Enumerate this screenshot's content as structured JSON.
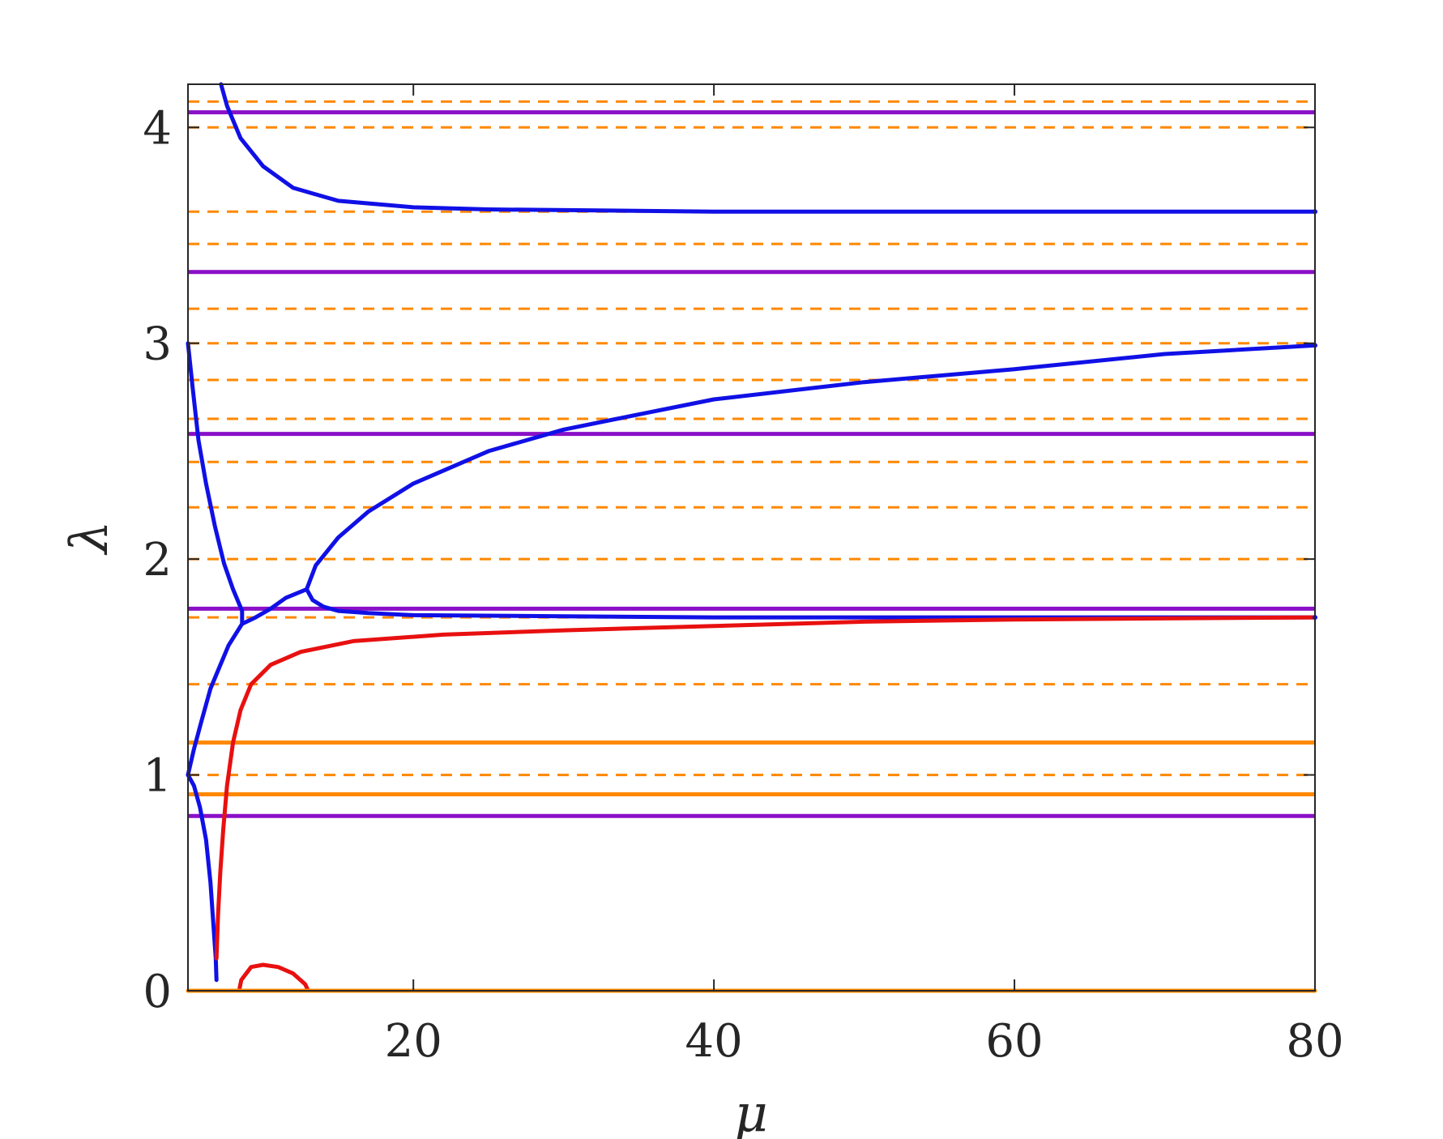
{
  "chart_data": {
    "type": "line",
    "title": "",
    "xlabel": "μ",
    "ylabel": "λ",
    "xlim": [
      5,
      80
    ],
    "ylim": [
      0,
      4.2
    ],
    "x_ticks": [
      20,
      40,
      60,
      80
    ],
    "y_ticks": [
      0,
      1,
      2,
      3,
      4
    ],
    "x_tick_labels": [
      "20",
      "40",
      "60",
      "80"
    ],
    "y_tick_labels": [
      "0",
      "1",
      "2",
      "3",
      "4"
    ],
    "grid": false,
    "legend": "none",
    "colors": {
      "blue": "#1010e6",
      "red": "#e81010",
      "purple": "#8a10c8",
      "orange": "#ff8800",
      "axis": "#262626"
    },
    "hlines": {
      "purple_solid": [
        0.81,
        1.77,
        2.58,
        3.33,
        4.07
      ],
      "orange_solid": [
        0,
        0.91,
        1.15
      ],
      "orange_dashed": [
        1.0,
        1.42,
        1.73,
        2.0,
        2.24,
        2.45,
        2.65,
        2.83,
        3.0,
        3.16,
        3.46,
        3.61,
        4.0,
        4.12
      ]
    },
    "series": [
      {
        "color": "blue",
        "points": [
          [
            5.0,
            3.0
          ],
          [
            5.3,
            2.8
          ],
          [
            5.7,
            2.55
          ],
          [
            6.2,
            2.35
          ],
          [
            6.8,
            2.15
          ],
          [
            7.4,
            1.98
          ],
          [
            8.0,
            1.86
          ],
          [
            8.6,
            1.76
          ],
          [
            8.6,
            1.7
          ]
        ]
      },
      {
        "color": "blue",
        "points": [
          [
            5.0,
            1.0
          ],
          [
            5.4,
            1.12
          ],
          [
            5.9,
            1.25
          ],
          [
            6.5,
            1.4
          ],
          [
            7.1,
            1.5
          ],
          [
            7.7,
            1.6
          ],
          [
            8.6,
            1.7
          ],
          [
            9.5,
            1.73
          ],
          [
            10.5,
            1.77
          ],
          [
            11.5,
            1.82
          ],
          [
            12.9,
            1.86
          ]
        ]
      },
      {
        "color": "blue",
        "points": [
          [
            12.9,
            1.86
          ],
          [
            13.5,
            1.97
          ],
          [
            15.0,
            2.1
          ],
          [
            17.0,
            2.22
          ],
          [
            20.0,
            2.35
          ],
          [
            25.0,
            2.5
          ],
          [
            30.0,
            2.6
          ],
          [
            35.0,
            2.67
          ],
          [
            40.0,
            2.74
          ],
          [
            50.0,
            2.82
          ],
          [
            60.0,
            2.88
          ],
          [
            70.0,
            2.95
          ],
          [
            80.0,
            2.99
          ]
        ]
      },
      {
        "color": "blue",
        "points": [
          [
            12.9,
            1.86
          ],
          [
            13.3,
            1.81
          ],
          [
            14.0,
            1.78
          ],
          [
            15.0,
            1.76
          ],
          [
            17.0,
            1.75
          ],
          [
            20.0,
            1.74
          ],
          [
            30.0,
            1.735
          ],
          [
            40.0,
            1.73
          ],
          [
            60.0,
            1.73
          ],
          [
            80.0,
            1.73
          ]
        ]
      },
      {
        "color": "blue",
        "points": [
          [
            5.0,
            1.0
          ],
          [
            5.4,
            0.95
          ],
          [
            5.8,
            0.85
          ],
          [
            6.2,
            0.7
          ],
          [
            6.5,
            0.5
          ],
          [
            6.7,
            0.3
          ],
          [
            6.85,
            0.15
          ],
          [
            6.9,
            0.05
          ]
        ]
      },
      {
        "color": "blue",
        "points": [
          [
            7.2,
            4.2
          ],
          [
            7.6,
            4.1
          ],
          [
            8.5,
            3.95
          ],
          [
            10.0,
            3.82
          ],
          [
            12.0,
            3.72
          ],
          [
            15.0,
            3.66
          ],
          [
            20.0,
            3.63
          ],
          [
            25.0,
            3.62
          ],
          [
            40.0,
            3.61
          ],
          [
            60.0,
            3.61
          ],
          [
            80.0,
            3.61
          ]
        ]
      },
      {
        "color": "red",
        "points": [
          [
            6.9,
            0.15
          ],
          [
            7.0,
            0.35
          ],
          [
            7.15,
            0.55
          ],
          [
            7.35,
            0.75
          ],
          [
            7.6,
            0.95
          ],
          [
            8.0,
            1.15
          ],
          [
            8.5,
            1.3
          ],
          [
            9.2,
            1.42
          ],
          [
            10.5,
            1.51
          ],
          [
            12.5,
            1.57
          ],
          [
            16.0,
            1.62
          ],
          [
            22.0,
            1.65
          ],
          [
            30.0,
            1.67
          ],
          [
            40.0,
            1.69
          ],
          [
            50.0,
            1.71
          ],
          [
            60.0,
            1.72
          ],
          [
            80.0,
            1.73
          ]
        ]
      },
      {
        "color": "red",
        "points": [
          [
            8.4,
            0.0
          ],
          [
            8.55,
            0.05
          ],
          [
            9.2,
            0.11
          ],
          [
            10.0,
            0.12
          ],
          [
            11.0,
            0.11
          ],
          [
            12.0,
            0.08
          ],
          [
            12.8,
            0.03
          ],
          [
            13.0,
            0.0
          ]
        ]
      },
      {
        "color": "orange",
        "points": [
          [
            5.0,
            0.0
          ],
          [
            80.0,
            0.0
          ]
        ]
      }
    ]
  }
}
